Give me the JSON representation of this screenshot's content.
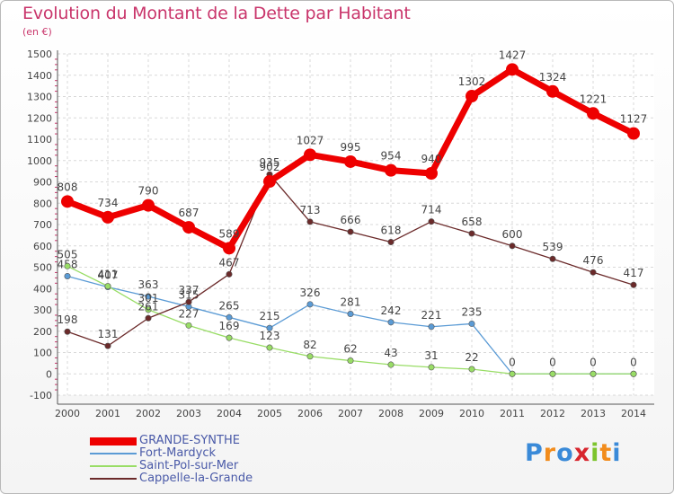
{
  "title": "Evolution du Montant de la Dette par Habitant",
  "unit": "(en €)",
  "logo": {
    "letters": [
      "P",
      "r",
      "o",
      "x",
      "i",
      "t",
      "i"
    ],
    "colors": [
      "#3a8ad8",
      "#f28c1c",
      "#3a8ad8",
      "#d8262e",
      "#7cc42c",
      "#f28c1c",
      "#3a8ad8"
    ]
  },
  "chart_data": {
    "type": "line",
    "title": "Evolution du Montant de la Dette par Habitant",
    "ylabel": "(en €)",
    "x": [
      "2000",
      "2001",
      "2002",
      "2003",
      "2004",
      "2005",
      "2006",
      "2007",
      "2008",
      "2009",
      "2010",
      "2011",
      "2012",
      "2013",
      "2014"
    ],
    "ylim": [
      -100,
      1500
    ],
    "yticks": [
      -100,
      0,
      100,
      200,
      300,
      400,
      500,
      600,
      700,
      800,
      900,
      1000,
      1100,
      1200,
      1300,
      1400,
      1500
    ],
    "grid": true,
    "legend_position": "bottom-left",
    "series": [
      {
        "name": "GRANDE-SYNTHE",
        "color": "#ee0000",
        "values": [
          808,
          734,
          790,
          687,
          589,
          902,
          1027,
          995,
          954,
          940,
          1302,
          1427,
          1324,
          1221,
          1127
        ],
        "labels": [
          "808",
          "734",
          "790",
          "687",
          "589",
          "902",
          "1027",
          "995",
          "954",
          "940",
          "1302",
          "1427",
          "1324",
          "1221",
          "1127"
        ]
      },
      {
        "name": "Fort-Mardyck",
        "color": "#5b9bd5",
        "values": [
          458,
          407,
          363,
          315,
          265,
          215,
          326,
          281,
          242,
          221,
          235,
          0,
          0,
          0,
          0
        ],
        "labels": [
          "458",
          "407",
          "363",
          "315",
          "265",
          "215",
          "326",
          "281",
          "242",
          "221",
          "235",
          "0",
          "0",
          "0",
          "0"
        ]
      },
      {
        "name": "Saint-Pol-sur-Mer",
        "color": "#99dd66",
        "values": [
          505,
          411,
          301,
          227,
          169,
          123,
          82,
          62,
          43,
          31,
          22,
          0,
          0,
          0,
          0
        ],
        "labels": [
          "505",
          "411",
          "301",
          "227",
          "169",
          "123",
          "82",
          "62",
          "43",
          "31",
          "22",
          "",
          "",
          "",
          ""
        ]
      },
      {
        "name": "Cappelle-la-Grande",
        "color": "#6b2a2a",
        "values": [
          198,
          131,
          261,
          337,
          467,
          935,
          713,
          666,
          618,
          714,
          658,
          600,
          539,
          476,
          417
        ],
        "labels": [
          "198",
          "131",
          "261",
          "337",
          "467",
          "935",
          "713",
          "666",
          "618",
          "714",
          "658",
          "600",
          "539",
          "476",
          "417"
        ]
      }
    ]
  }
}
